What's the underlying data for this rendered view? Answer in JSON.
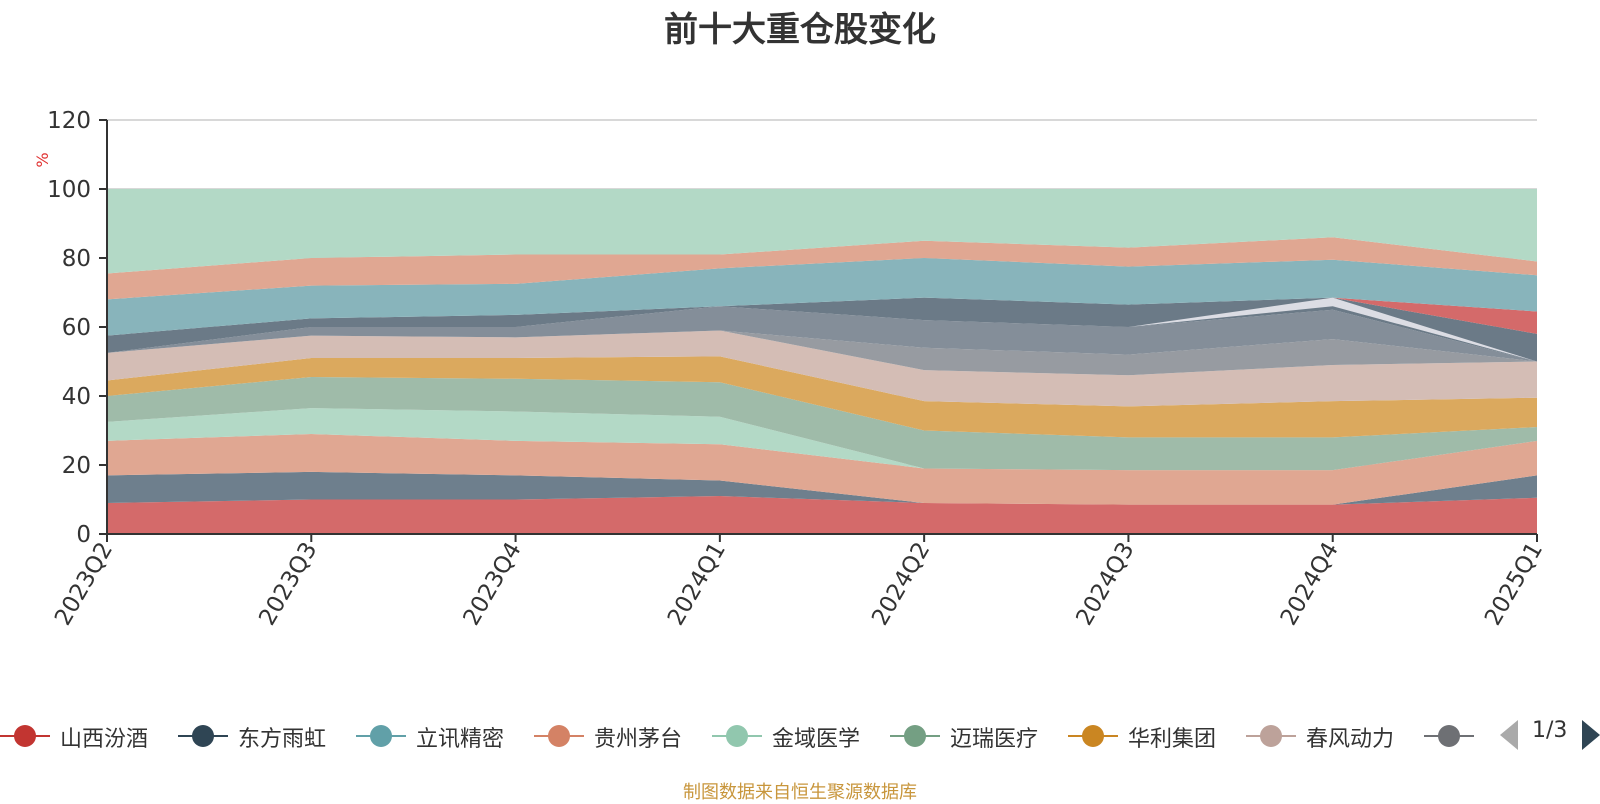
{
  "chart_data": {
    "type": "area",
    "title": "前十大重仓股变化",
    "ylabel": "%",
    "ylim": [
      0,
      120
    ],
    "yticks": [
      0,
      20,
      40,
      60,
      80,
      100,
      120
    ],
    "categories": [
      "2023Q2",
      "2023Q3",
      "2023Q4",
      "2024Q1",
      "2024Q2",
      "2024Q3",
      "2024Q4",
      "2025Q1"
    ],
    "stacked": true,
    "grid": true,
    "source": "制图数据来自恒生聚源数据库",
    "band_boundaries": [
      [
        0,
        0,
        0,
        0,
        0,
        0,
        0,
        0
      ],
      [
        9,
        10,
        10,
        11,
        9,
        8.5,
        8.5,
        10.5
      ],
      [
        17,
        18,
        17,
        15.5,
        9,
        8.5,
        8.5,
        17
      ],
      [
        27,
        29,
        27,
        26,
        19,
        18.5,
        18.5,
        27
      ],
      [
        32.5,
        36.5,
        35.5,
        34,
        19,
        18.5,
        18.5,
        27
      ],
      [
        40,
        45.5,
        45,
        44,
        30,
        28,
        28,
        31
      ],
      [
        44.5,
        51,
        51,
        51.5,
        38.5,
        37,
        38.5,
        39.5
      ],
      [
        52.5,
        57.5,
        57,
        59,
        47.5,
        46,
        49,
        50
      ],
      [
        52.5,
        57.5,
        57,
        59,
        54,
        52,
        56.5,
        50
      ],
      [
        52.5,
        60,
        60,
        66,
        62,
        60,
        65,
        50
      ],
      [
        57.5,
        62.5,
        63.5,
        66,
        68.5,
        66.5,
        68.5,
        58
      ],
      [
        57.5,
        62.5,
        63.5,
        66,
        68.5,
        66.5,
        68.5,
        64.5
      ],
      [
        68,
        72,
        72.5,
        77,
        80,
        77.5,
        79.5,
        75
      ],
      [
        75.5,
        80,
        81,
        81,
        85,
        83,
        86,
        79
      ],
      [
        100,
        100,
        100,
        100,
        100,
        100,
        100,
        100
      ]
    ],
    "band_colors": [
      "#d46a6a",
      "#6e7f8d",
      "#e0a792",
      "#b3d9c6",
      "#9fbba9",
      "#dba95e",
      "#d4bdb5",
      "#979ba1",
      "#848e99",
      "#6b7a87",
      "#d46a6a",
      "#88b4bb",
      "#e0a792",
      "#b3d9c6",
      "#9fbba9"
    ]
  },
  "legend": {
    "items": [
      {
        "label": "山西汾酒",
        "color": "#c23531"
      },
      {
        "label": "东方雨虹",
        "color": "#2f4554"
      },
      {
        "label": "立讯精密",
        "color": "#61a0a8"
      },
      {
        "label": "贵州茅台",
        "color": "#d48265"
      },
      {
        "label": "金域医学",
        "color": "#91c7ae"
      },
      {
        "label": "迈瑞医疗",
        "color": "#749f83"
      },
      {
        "label": "华利集团",
        "color": "#ca8622"
      },
      {
        "label": "春风动力",
        "color": "#bda29a"
      },
      {
        "label": "",
        "color": "#6e7074"
      }
    ],
    "page": "1/3"
  }
}
